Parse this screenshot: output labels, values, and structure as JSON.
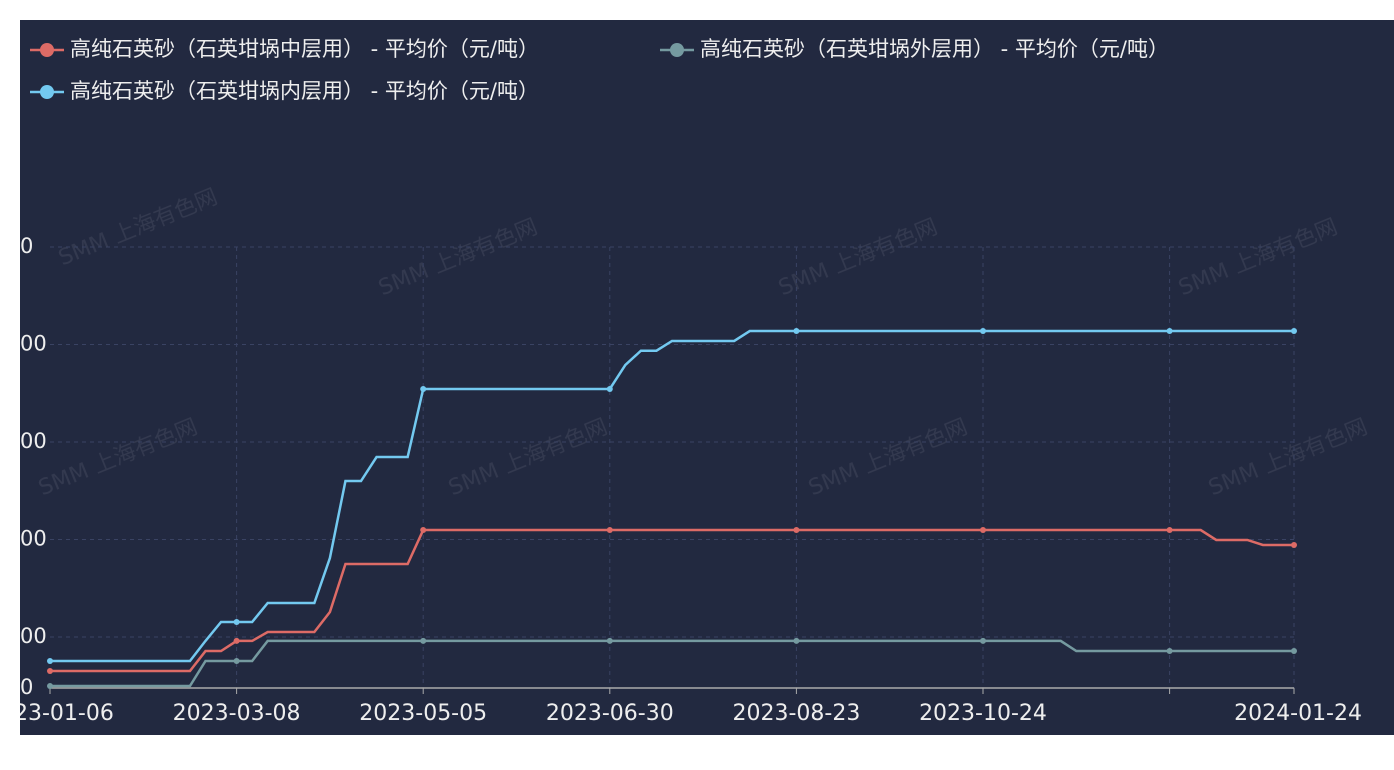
{
  "chart_data": {
    "type": "line",
    "legend_names_note_free": null,
    "series": [
      {
        "name": "高纯石英砂（石英坩埚中层用） - 平均价（元/吨）",
        "color": "#dd6b66",
        "values": [
          65100,
          65100,
          65100,
          65100,
          65100,
          65100,
          65100,
          65100,
          65100,
          65100,
          85600,
          85600,
          96000,
          96000,
          105100,
          105100,
          105100,
          105100,
          125600,
          174900,
          174900,
          174900,
          174900,
          174900,
          209700,
          209700,
          209700,
          209700,
          209700,
          209700,
          209700,
          209700,
          209700,
          209700,
          209700,
          209700,
          209700,
          209700,
          209700,
          209700,
          209700,
          209700,
          209700,
          209700,
          209700,
          209700,
          209700,
          209700,
          209700,
          209700,
          209700,
          209700,
          209700,
          209700,
          209700,
          209700,
          209700,
          209700,
          209700,
          209700,
          209700,
          209700,
          209700,
          209700,
          209700,
          209700,
          209700,
          209700,
          209700,
          209700,
          209700,
          209700,
          209700,
          209700,
          209700,
          199500,
          199500,
          199500,
          194400,
          194400,
          194400
        ]
      },
      {
        "name": "高纯石英砂（石英坩埚外层用） - 平均价（元/吨）",
        "color": "#759aa0",
        "values": [
          49700,
          49700,
          49700,
          49700,
          49700,
          49700,
          49700,
          49700,
          49700,
          49700,
          75400,
          75400,
          75400,
          75400,
          96000,
          96000,
          96000,
          96000,
          96000,
          96000,
          96000,
          96000,
          96000,
          96000,
          96000,
          96000,
          96000,
          96000,
          96000,
          96000,
          96000,
          96000,
          96000,
          96000,
          96000,
          96000,
          96000,
          96000,
          96000,
          96000,
          96000,
          96000,
          96000,
          96000,
          96000,
          96000,
          96000,
          96000,
          96000,
          96000,
          96000,
          96000,
          96000,
          96000,
          96000,
          96000,
          96000,
          96000,
          96000,
          96000,
          96000,
          96000,
          96000,
          96000,
          96000,
          96000,
          85600,
          85600,
          85600,
          85600,
          85600,
          85600,
          85600,
          85600,
          85600,
          85600,
          85600,
          85600,
          85600,
          85600,
          85600
        ]
      },
      {
        "name": "高纯石英砂（石英坩埚内层用） - 平均价（元/吨）",
        "color": "#73c9f0",
        "values": [
          75400,
          75400,
          75400,
          75400,
          75400,
          75400,
          75400,
          75400,
          75400,
          75400,
          96000,
          115400,
          115400,
          115400,
          134900,
          134900,
          134900,
          134900,
          181000,
          260000,
          260000,
          284600,
          284600,
          284600,
          354400,
          354400,
          354400,
          354400,
          354400,
          354400,
          354400,
          354400,
          354400,
          354400,
          354400,
          354400,
          354400,
          379000,
          393600,
          393600,
          403600,
          403600,
          403600,
          403600,
          403600,
          413800,
          413800,
          413800,
          413800,
          413800,
          413800,
          413800,
          413800,
          413800,
          413800,
          413800,
          413800,
          413800,
          413800,
          413800,
          413800,
          413800,
          413800,
          413800,
          413800,
          413800,
          413800,
          413800,
          413800,
          413800,
          413800,
          413800,
          413800,
          413800,
          413800,
          413800,
          413800,
          413800,
          413800,
          413800,
          413800
        ]
      }
    ],
    "categories": [
      "23-01-06",
      null,
      null,
      null,
      null,
      null,
      null,
      null,
      null,
      null,
      null,
      null,
      "2023-03-08",
      null,
      null,
      null,
      null,
      null,
      null,
      null,
      null,
      null,
      null,
      null,
      "2023-05-05",
      null,
      null,
      null,
      null,
      null,
      null,
      null,
      null,
      null,
      null,
      null,
      "2023-06-30",
      null,
      null,
      null,
      null,
      null,
      null,
      null,
      null,
      null,
      null,
      null,
      "2023-08-23",
      null,
      null,
      null,
      null,
      null,
      null,
      null,
      null,
      null,
      null,
      null,
      "2023-10-24",
      null,
      null,
      null,
      null,
      null,
      null,
      null,
      null,
      null,
      null,
      null,
      null,
      null,
      null,
      null,
      null,
      null,
      null,
      null,
      "2024-01-24"
    ],
    "ylim": [
      47700,
      500000
    ],
    "yticks": [
      {
        "value": 47700,
        "label": "0"
      },
      {
        "value": 100000,
        "label": "00"
      },
      {
        "value": 200000,
        "label": "00"
      },
      {
        "value": 300000,
        "label": "00"
      },
      {
        "value": 400000,
        "label": "00"
      },
      {
        "value": 500000,
        "label": "0"
      }
    ],
    "grid": true,
    "watermark": "SMM 上海有色网"
  }
}
